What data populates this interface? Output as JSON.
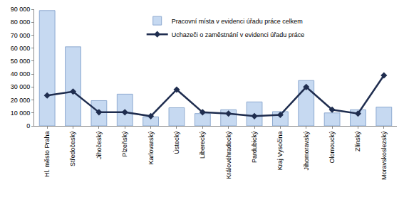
{
  "chart_data": {
    "type": "bar",
    "categories": [
      "Hl. město Praha",
      "Středočeský",
      "Jihočeský",
      "Plzeňský",
      "Karlovarský",
      "Ústecký",
      "Liberecký",
      "Královéhradecký",
      "Pardubický",
      "Kraj Vysočina",
      "Jihomoravský",
      "Olomoucký",
      "Zlínský",
      "Moravskoslezský"
    ],
    "series": [
      {
        "name": "Pracovní místa v evidenci úřadu práce celkem",
        "type": "bar",
        "color": "#c6d9f1",
        "values": [
          89000,
          61000,
          19500,
          24500,
          7000,
          14000,
          9500,
          12500,
          18500,
          11000,
          35000,
          10000,
          12500,
          14500
        ]
      },
      {
        "name": "Uchazeči o zaměstnání v evidenci úřadu práce",
        "type": "line",
        "color": "#1f2d4f",
        "marker": "diamond",
        "line_style": "solid",
        "values": [
          23500,
          26500,
          10500,
          10500,
          7500,
          28000,
          10500,
          9500,
          7500,
          8500,
          30000,
          12500,
          9500,
          39000
        ]
      }
    ],
    "ylim": [
      0,
      90000
    ],
    "yticks": [
      0,
      {
        "value": 10000,
        "label": "10 000"
      },
      {
        "value": 20000,
        "label": "20 000"
      },
      {
        "value": 30000,
        "label": "30 000"
      },
      {
        "value": 40000,
        "label": "40 000"
      },
      {
        "value": 50000,
        "label": "50 000"
      },
      {
        "value": 60000,
        "label": "60 000"
      },
      {
        "value": 70000,
        "label": "70 000"
      },
      {
        "value": 80000,
        "label": "80 000"
      },
      {
        "value": 90000,
        "label": "90 000"
      }
    ],
    "grid": false,
    "legend": "upper center"
  }
}
